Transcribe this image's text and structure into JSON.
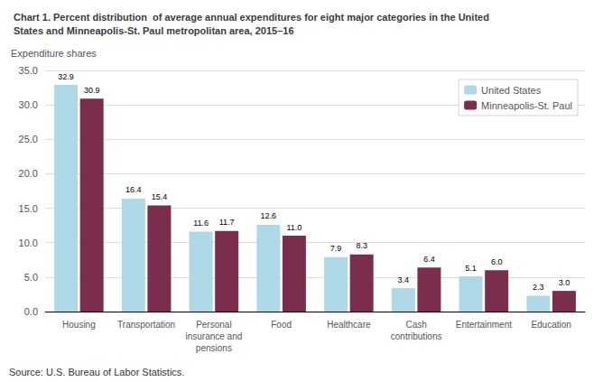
{
  "chart_data": {
    "type": "bar",
    "title": "Chart 1. Percent distribution  of average annual expenditures for eight major categories in the United\nStates and Minneapolis-St. Paul metropolitan area, 2015–16",
    "ylabel": "Expenditure shares",
    "source": "Source: U.S. Bureau of Labor Statistics.",
    "categories": [
      "Housing",
      "Transportation",
      "Personal\ninsurance and\npensions",
      "Food",
      "Healthcare",
      "Cash\ncontributions",
      "Entertainment",
      "Education"
    ],
    "series": [
      {
        "name": "United States",
        "color": "#ADD8E6",
        "values": [
          32.9,
          16.4,
          11.6,
          12.6,
          7.9,
          3.4,
          5.1,
          2.3
        ],
        "value_labels": [
          "32.9",
          "16.4",
          "11.6",
          "12.6",
          "7.9",
          "3.4",
          "5.1",
          "2.3"
        ]
      },
      {
        "name": "Minneapolis-St. Paul",
        "color": "#7B2D4E",
        "values": [
          30.9,
          15.4,
          11.7,
          11.0,
          8.3,
          6.4,
          6.0,
          3.0
        ],
        "value_labels": [
          "30.9",
          "15.4",
          "11.7",
          "11.0",
          "8.3",
          "6.4",
          "6.0",
          "3.0"
        ]
      }
    ],
    "ylim": [
      0,
      35.0
    ],
    "yticks": [
      {
        "value": 0,
        "label": "0.0"
      },
      {
        "value": 5,
        "label": "5.0"
      },
      {
        "value": 10,
        "label": "10.0"
      },
      {
        "value": 15,
        "label": "15.0"
      },
      {
        "value": 20,
        "label": "20.0"
      },
      {
        "value": 25,
        "label": "25.0"
      },
      {
        "value": 30,
        "label": "30.0"
      },
      {
        "value": 35,
        "label": "35.0"
      }
    ],
    "grid": true,
    "legend": "upper right",
    "data_labels": true
  }
}
